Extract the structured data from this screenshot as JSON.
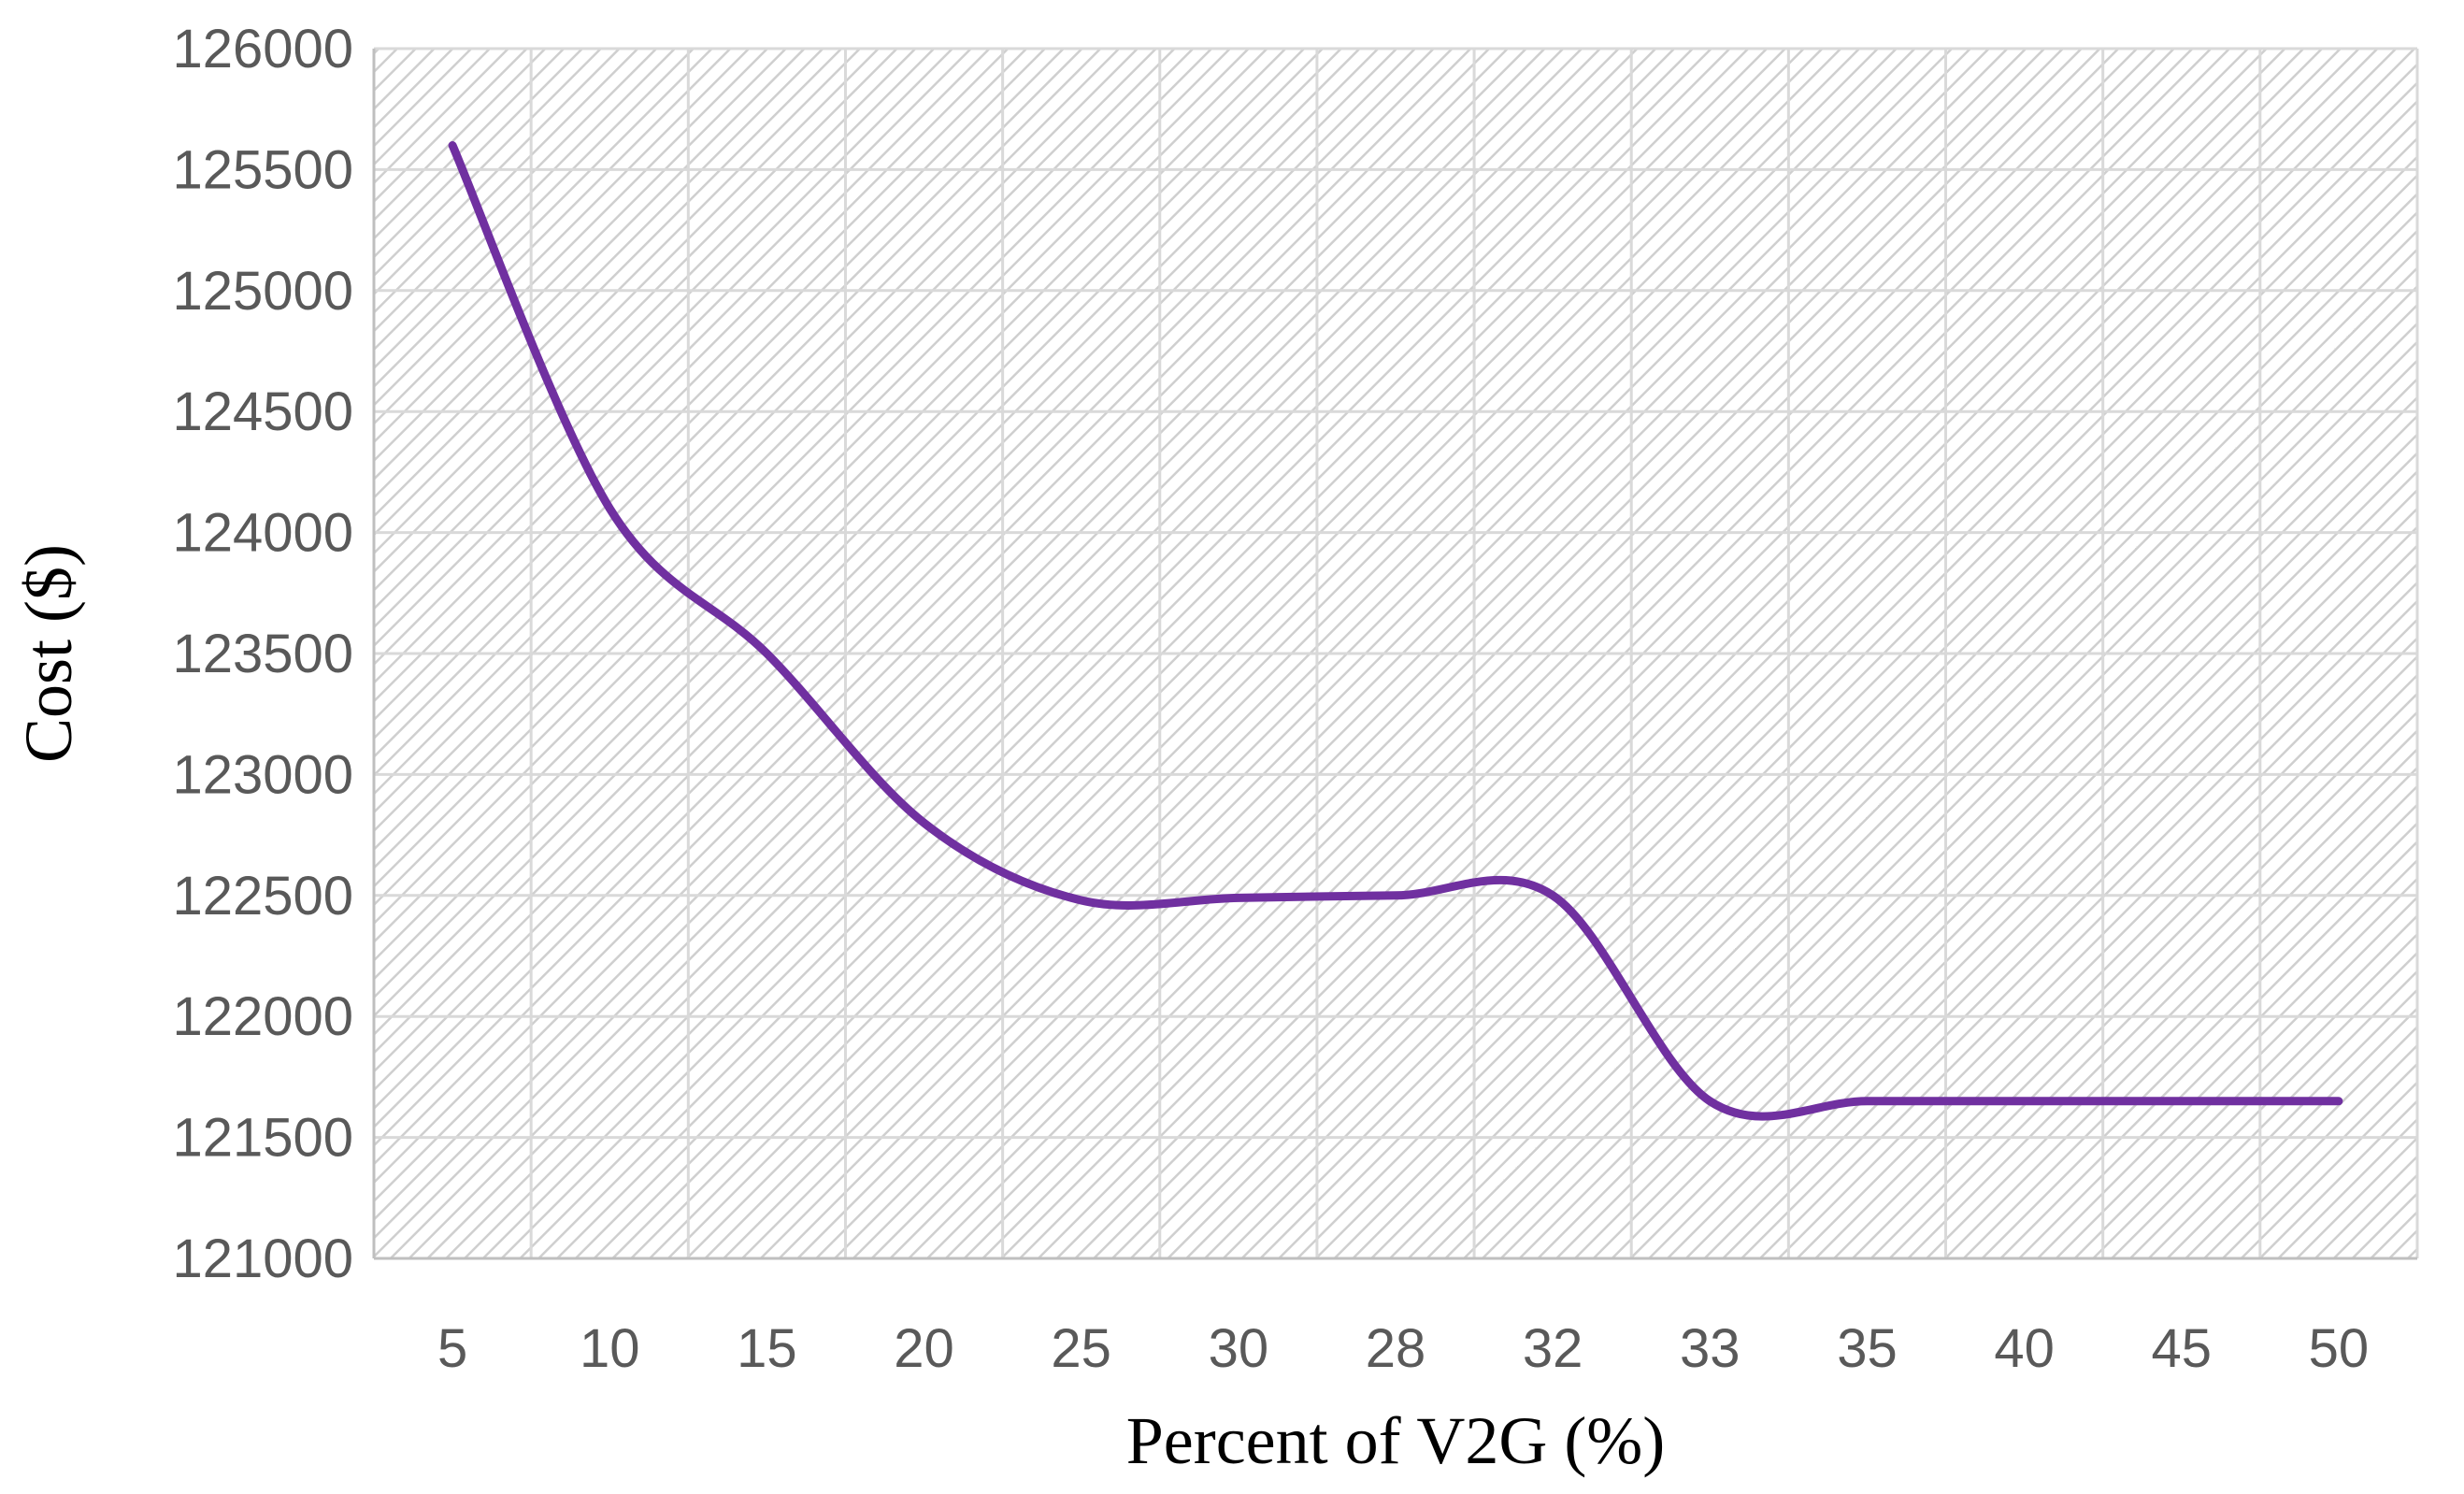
{
  "chart_data": {
    "type": "line",
    "title": "",
    "xlabel": "Percent of V2G (%)",
    "ylabel": "Cost ($)",
    "categories": [
      "5",
      "10",
      "15",
      "20",
      "25",
      "30",
      "28",
      "32",
      "33",
      "35",
      "40",
      "45",
      "50"
    ],
    "series": [
      {
        "name": "Cost",
        "color": "#7030a0",
        "values": [
          125600,
          124100,
          123500,
          122800,
          122480,
          122490,
          122500,
          122500,
          121650,
          121650,
          121650,
          121650,
          121650
        ]
      }
    ],
    "ylim": [
      121000,
      126000
    ],
    "yticks": [
      121000,
      121500,
      122000,
      122500,
      123000,
      123500,
      124000,
      124500,
      125000,
      125500,
      126000
    ],
    "grid": true,
    "plot_background": "hatched",
    "axis_color": "#bfbfbf",
    "grid_color": "#d9d9d9"
  }
}
